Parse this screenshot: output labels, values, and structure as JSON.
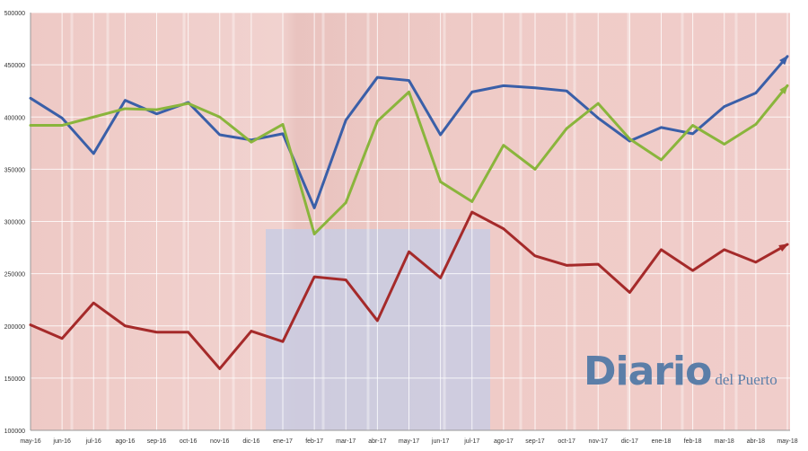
{
  "chart_data": {
    "type": "line",
    "title": "",
    "xlabel": "",
    "ylabel": "",
    "ylim": [
      100000,
      500000
    ],
    "yticks": [
      "100000",
      "150000",
      "200000",
      "250000",
      "300000",
      "350000",
      "400000",
      "450000",
      "500000"
    ],
    "grid": true,
    "categories": [
      "may-16",
      "jun-16",
      "jul-16",
      "ago-16",
      "sep-16",
      "oct-16",
      "nov-16",
      "dic-16",
      "ene-17",
      "feb-17",
      "mar-17",
      "abr-17",
      "may-17",
      "jun-17",
      "jul-17",
      "ago-17",
      "sep-17",
      "oct-17",
      "nov-17",
      "dic-17",
      "ene-18",
      "feb-18",
      "mar-18",
      "abr-18",
      "may-18"
    ],
    "series": [
      {
        "color": "#3a5fa8",
        "values": [
          418000,
          399000,
          365000,
          416000,
          403000,
          414000,
          383000,
          378000,
          384000,
          313000,
          397000,
          438000,
          435000,
          383000,
          424000,
          430000,
          428000,
          425000,
          399000,
          377000,
          390000,
          384000,
          410000,
          423000,
          458000
        ]
      },
      {
        "color": "#8ab53c",
        "values": [
          392000,
          392000,
          400000,
          408000,
          407000,
          413000,
          400000,
          376000,
          393000,
          288000,
          318000,
          396000,
          424000,
          338000,
          319000,
          373000,
          350000,
          389000,
          413000,
          379000,
          359000,
          392000,
          374000,
          393000,
          430000
        ]
      },
      {
        "color": "#a52a2a",
        "values": [
          201000,
          188000,
          222000,
          200000,
          194000,
          194000,
          159000,
          195000,
          185000,
          247000,
          244000,
          205000,
          271000,
          246000,
          309000,
          293000,
          267000,
          258000,
          259000,
          232000,
          273000,
          253000,
          273000,
          261000,
          278000
        ]
      }
    ]
  },
  "logo": {
    "main": "Diario",
    "sub": "del Puerto"
  }
}
